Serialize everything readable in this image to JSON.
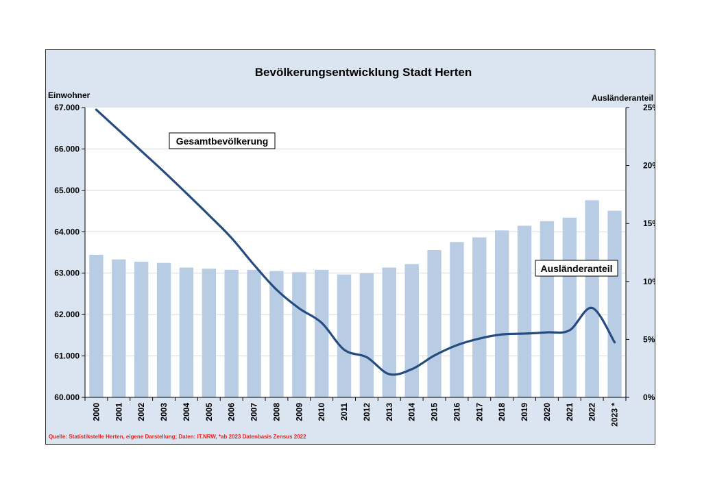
{
  "chart_data": {
    "type": "bar+line",
    "title": "Bevölkerungsentwicklung Stadt Herten",
    "left_axis_label": "Einwohner",
    "right_axis_label": "Ausländeranteil",
    "left_ticks": [
      "60.000",
      "61.000",
      "62.000",
      "63.000",
      "64.000",
      "65.000",
      "66.000",
      "67.000"
    ],
    "left_ylim": [
      60000,
      67000
    ],
    "right_ticks": [
      "0%",
      "5%",
      "10%",
      "15%",
      "20%",
      "25%"
    ],
    "right_ylim": [
      0,
      25
    ],
    "categories": [
      "2000",
      "2001",
      "2002",
      "2003",
      "2004",
      "2005",
      "2006",
      "2007",
      "2008",
      "2009",
      "2010",
      "2011",
      "2012",
      "2013",
      "2014",
      "2015",
      "2016",
      "2017",
      "2018",
      "2019",
      "2020",
      "2021",
      "2022",
      "2023 *"
    ],
    "series": [
      {
        "name": "Gesamtbevölkerung",
        "type": "line",
        "axis": "left",
        "values": [
          66950,
          66450,
          65950,
          65450,
          64930,
          64400,
          63850,
          63200,
          62600,
          62150,
          61800,
          61150,
          60970,
          60560,
          60680,
          61010,
          61260,
          61420,
          61520,
          61540,
          61570,
          61620,
          62160,
          61330
        ]
      },
      {
        "name": "Ausländeranteil",
        "type": "bar",
        "axis": "right",
        "values": [
          12.3,
          11.9,
          11.7,
          11.6,
          11.2,
          11.1,
          11.0,
          11.0,
          10.9,
          10.8,
          11.0,
          10.6,
          10.7,
          11.2,
          11.5,
          12.7,
          13.4,
          13.8,
          14.4,
          14.8,
          15.2,
          15.5,
          17.0,
          16.1
        ]
      }
    ],
    "annotations": [
      {
        "text": "Gesamtbevölkerung"
      },
      {
        "text": "Ausländeranteil"
      }
    ],
    "source": "Quelle: Statistikstelle Herten, eigene Darstellung; Daten: IT.NRW, *ab 2023 Datenbasis Zensus 2022",
    "colors": {
      "bar": "#b8cce4",
      "line": "#264b80",
      "background": "#dbe5f1",
      "plot": "#ffffff",
      "grid": "#d9d9d9",
      "source_text": "#e8211c"
    }
  }
}
